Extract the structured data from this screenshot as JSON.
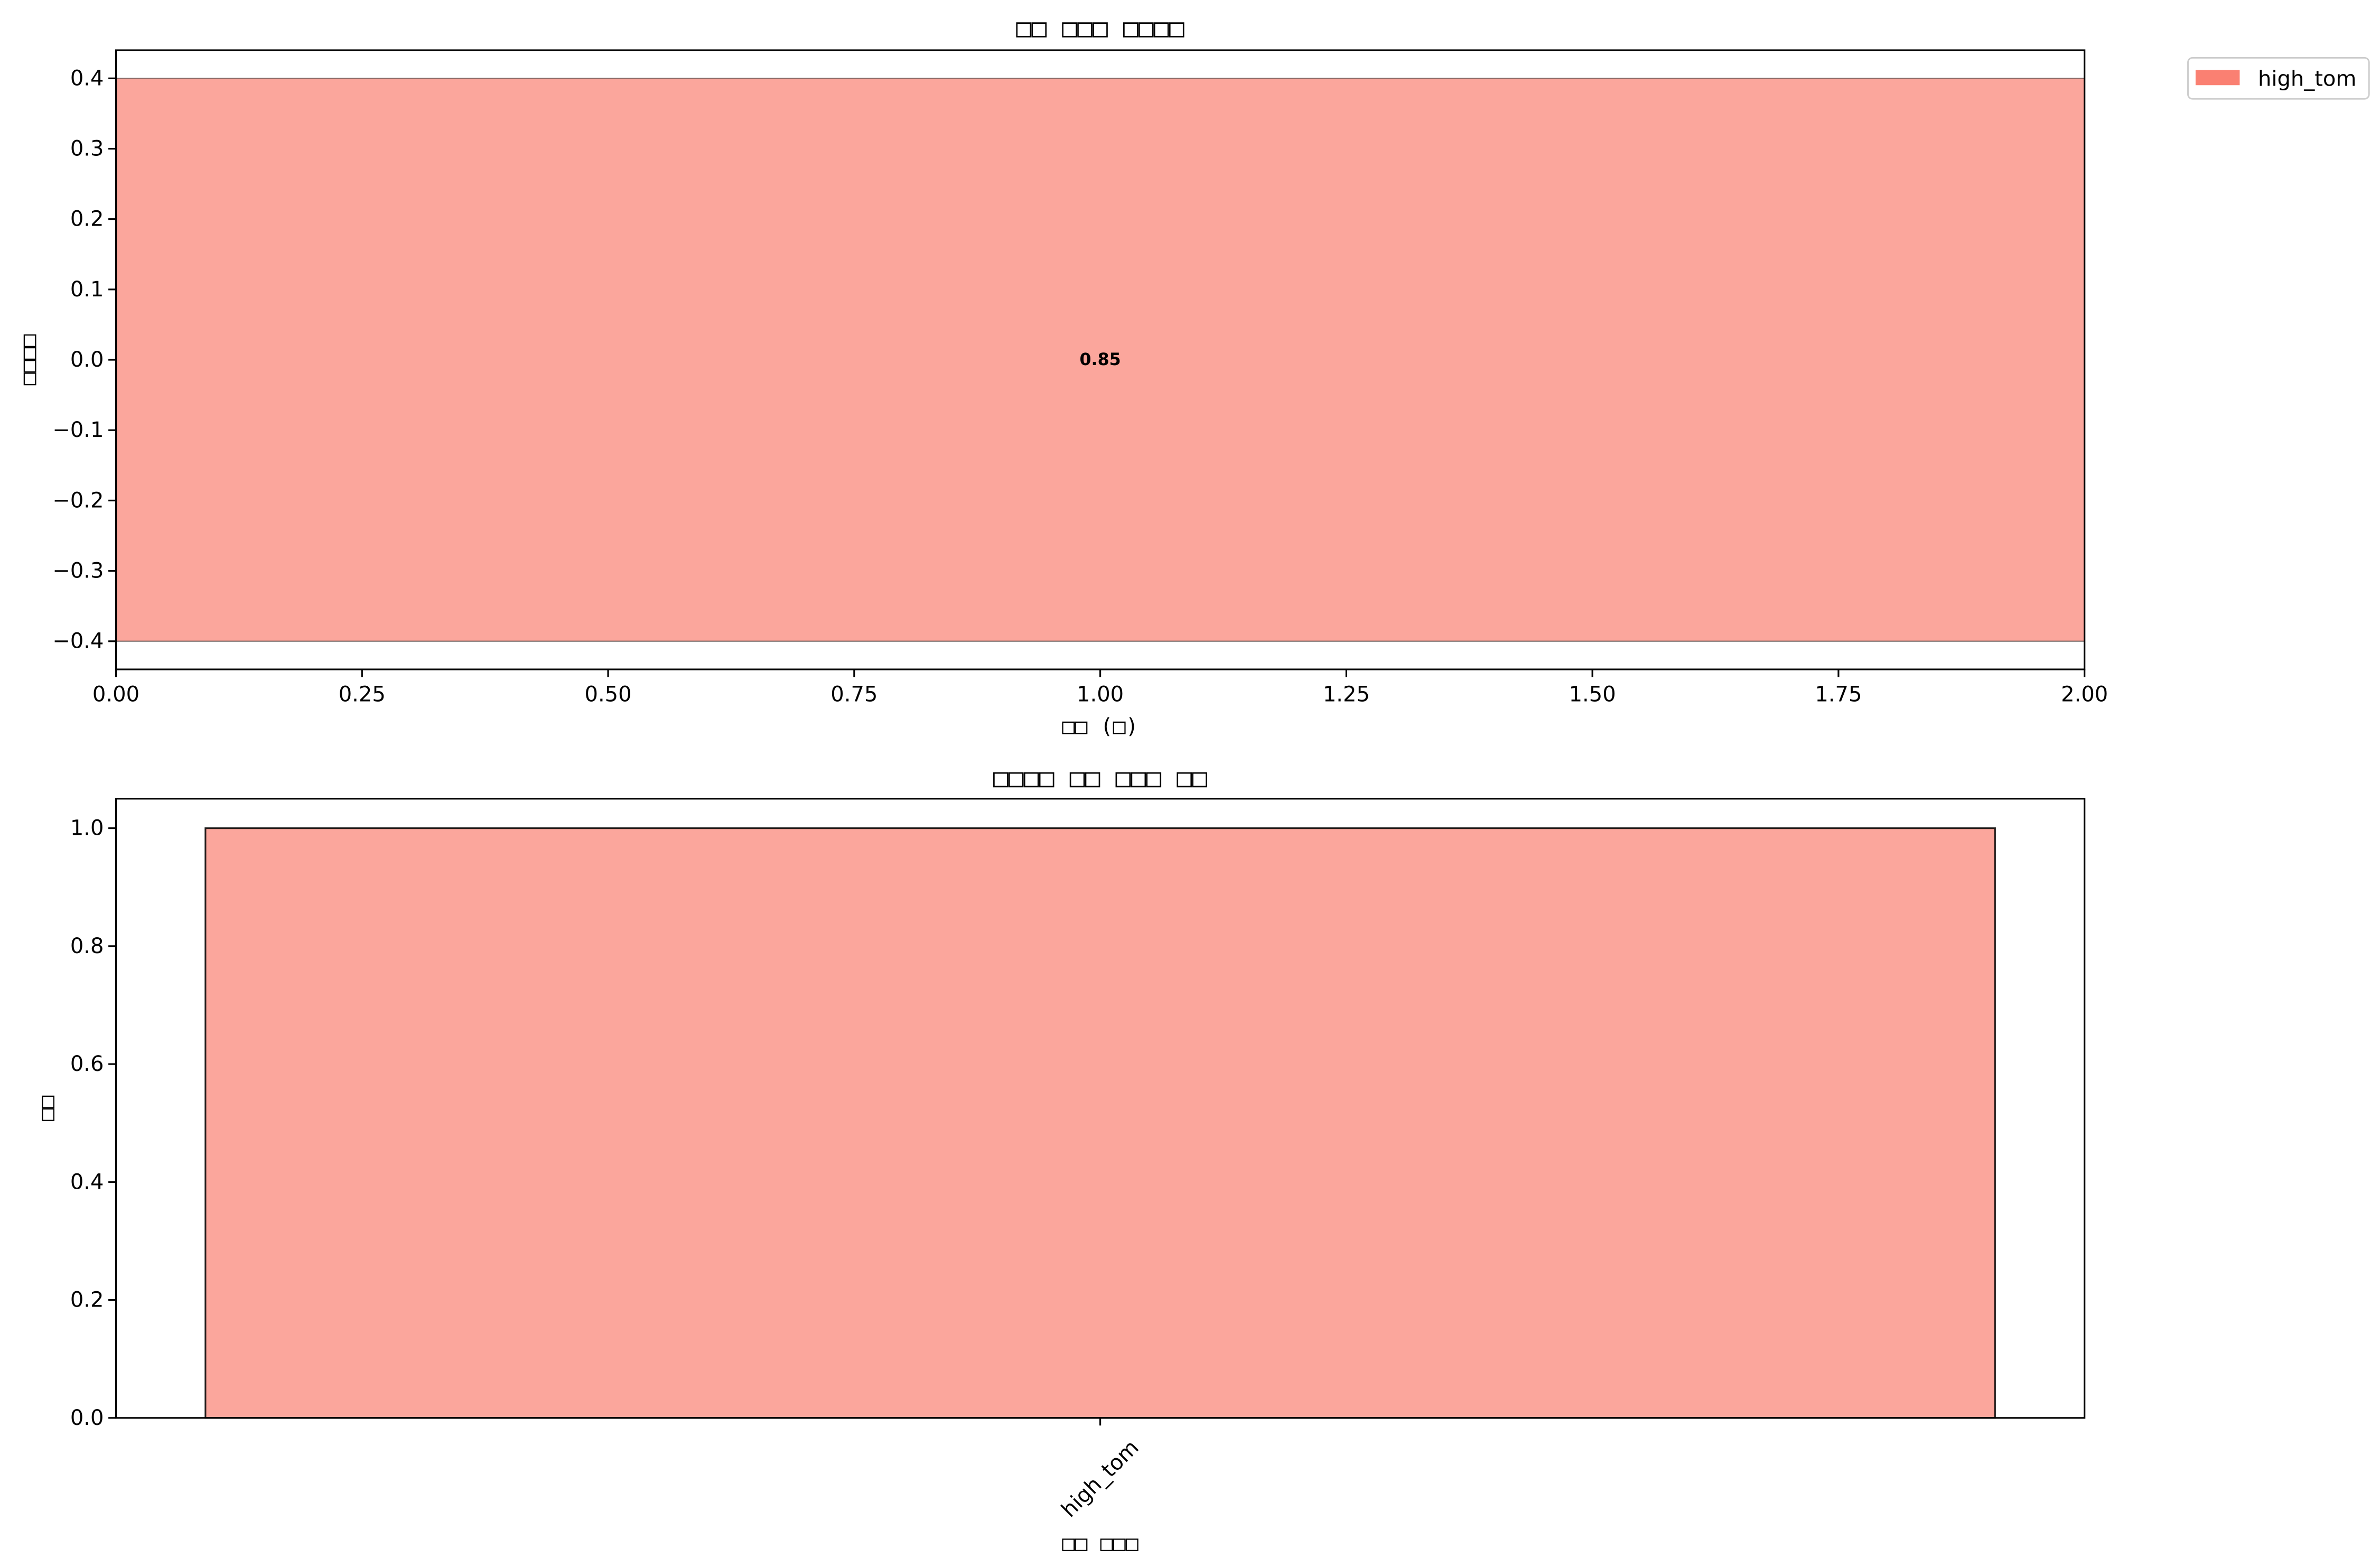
{
  "chart_data": [
    {
      "type": "bar",
      "orientation": "horizontal",
      "title": "□□ □□□ □□□□",
      "xlabel": "□□ (□)",
      "ylabel": "□□□□",
      "xlim": [
        0,
        2
      ],
      "ylim": [
        -0.44,
        0.44
      ],
      "grid": false,
      "xticks": [
        {
          "value": 0,
          "label": "0.00"
        },
        {
          "value": 0.25,
          "label": "0.25"
        },
        {
          "value": 0.5,
          "label": "0.50"
        },
        {
          "value": 0.75,
          "label": "0.75"
        },
        {
          "value": 1.0,
          "label": "1.00"
        },
        {
          "value": 1.25,
          "label": "1.25"
        },
        {
          "value": 1.5,
          "label": "1.50"
        },
        {
          "value": 1.75,
          "label": "1.75"
        },
        {
          "value": 2.0,
          "label": "2.00"
        }
      ],
      "yticks": [
        {
          "value": -0.4,
          "label": "−0.4"
        },
        {
          "value": -0.3,
          "label": "−0.3"
        },
        {
          "value": -0.2,
          "label": "−0.2"
        },
        {
          "value": -0.1,
          "label": "−0.1"
        },
        {
          "value": 0.0,
          "label": "0.0"
        },
        {
          "value": 0.1,
          "label": "0.1"
        },
        {
          "value": 0.2,
          "label": "0.2"
        },
        {
          "value": 0.3,
          "label": "0.3"
        },
        {
          "value": 0.4,
          "label": "0.4"
        }
      ],
      "segments": [
        {
          "start": 0,
          "end": 2,
          "y_low": -0.4,
          "y_high": 0.4,
          "color": "#FA8072",
          "label": "0.85"
        }
      ],
      "legend": {
        "placement": "upper right, outside axes",
        "entries": [
          {
            "name": "high_tom",
            "color": "#FA8072"
          }
        ]
      }
    },
    {
      "type": "bar",
      "title": "□□□□ □□ □□□ □□",
      "xlabel": "□□ □□□",
      "ylabel": "□□",
      "categories": [
        "high_tom"
      ],
      "values": [
        1.0
      ],
      "colors": [
        "#FA8072"
      ],
      "ylim": [
        0,
        1.05
      ],
      "grid": false,
      "yticks": [
        {
          "value": 0.0,
          "label": "0.0"
        },
        {
          "value": 0.2,
          "label": "0.2"
        },
        {
          "value": 0.4,
          "label": "0.4"
        },
        {
          "value": 0.6,
          "label": "0.6"
        },
        {
          "value": 0.8,
          "label": "0.8"
        },
        {
          "value": 1.0,
          "label": "1.0"
        }
      ]
    }
  ]
}
